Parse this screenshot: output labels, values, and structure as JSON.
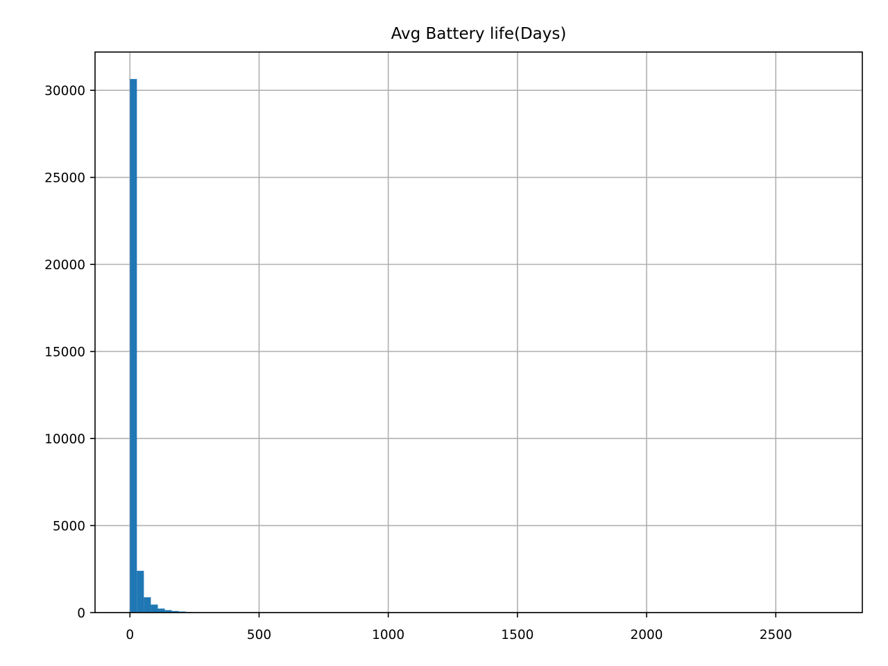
{
  "chart_data": {
    "type": "bar",
    "title": "Avg Battery life(Days)",
    "xlabel": "",
    "ylabel": "",
    "xlim": [
      -135,
      2835
    ],
    "ylim": [
      0,
      32200
    ],
    "x_ticks": [
      0,
      500,
      1000,
      1500,
      2000,
      2500
    ],
    "x_tick_labels": [
      "0",
      "500",
      "1000",
      "1500",
      "2000",
      "2500"
    ],
    "y_ticks": [
      0,
      5000,
      10000,
      15000,
      20000,
      25000,
      30000
    ],
    "y_tick_labels": [
      "0",
      "5000",
      "10000",
      "15000",
      "20000",
      "25000",
      "30000"
    ],
    "grid": true,
    "bar_color": "#1f77b4",
    "bin_width": 27,
    "bin_starts": [
      0,
      27,
      54,
      81,
      108,
      135,
      162,
      189,
      216,
      243
    ],
    "values": [
      30650,
      2400,
      880,
      460,
      230,
      140,
      90,
      60,
      35,
      20
    ]
  }
}
